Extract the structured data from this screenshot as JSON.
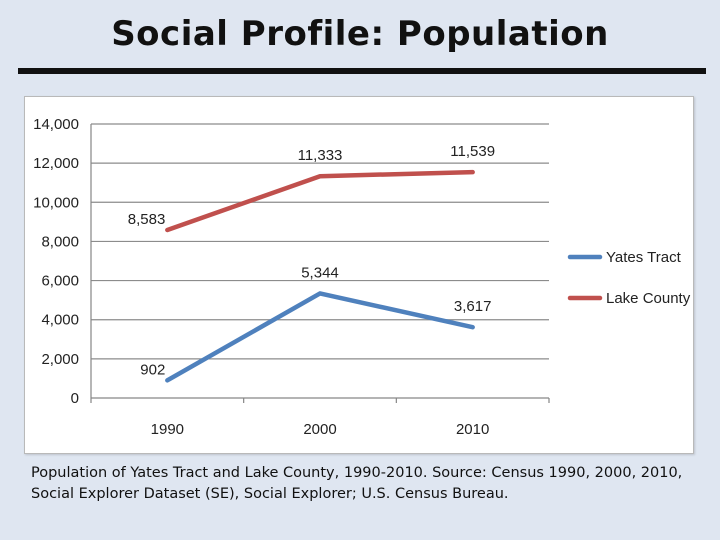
{
  "slide": {
    "title": "Social Profile: Population",
    "caption": "Population of Yates Tract and Lake County, 1990-2010.  Source: Census 1990, 2000, 2010, Social Explorer Dataset (SE), Social Explorer; U.S. Census Bureau."
  },
  "chart_data": {
    "type": "line",
    "categories": [
      "1990",
      "2000",
      "2010"
    ],
    "series": [
      {
        "name": "Yates Tract",
        "values": [
          902,
          5344,
          3617
        ],
        "color": "#4f81bd",
        "labels": [
          "902",
          "5,344",
          "3,617"
        ]
      },
      {
        "name": "Lake County",
        "values": [
          8583,
          11333,
          11539
        ],
        "color": "#c0504d",
        "labels": [
          "8,583",
          "11,333",
          "11,539"
        ]
      }
    ],
    "ylim": [
      0,
      14000
    ],
    "yticks": [
      0,
      2000,
      4000,
      6000,
      8000,
      10000,
      12000,
      14000
    ],
    "ytick_labels": [
      "0",
      "2,000",
      "4,000",
      "6,000",
      "8,000",
      "10,000",
      "12,000",
      "14,000"
    ],
    "grid": true,
    "legend_position": "right",
    "title": "",
    "xlabel": "",
    "ylabel": ""
  }
}
